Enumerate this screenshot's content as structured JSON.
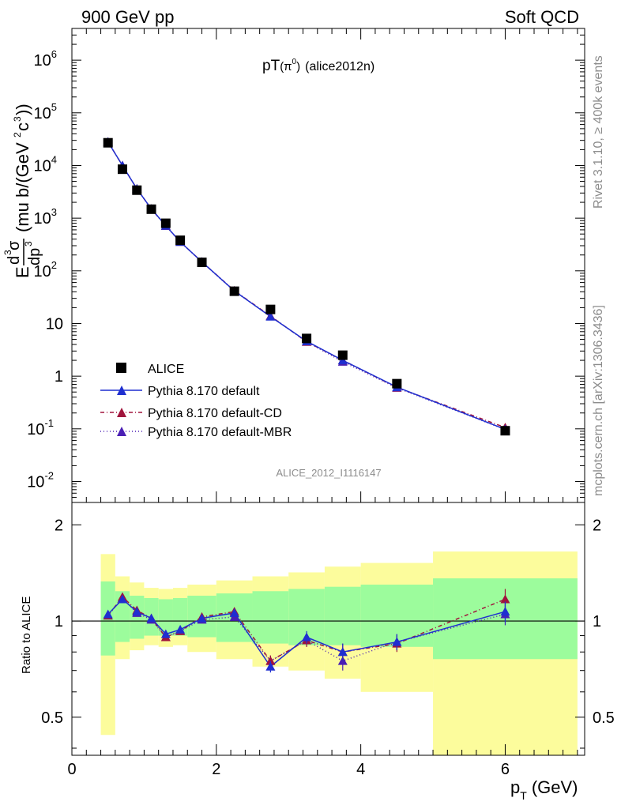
{
  "header": {
    "left": "900 GeV pp",
    "right": "Soft QCD"
  },
  "side_text": {
    "rivet": "Rivet 3.1.10, ≥ 400k events",
    "mcplots": "mcplots.cern.ch [arXiv:1306.3436]"
  },
  "plot_title": {
    "main": "pT",
    "paren": "(π",
    "sup": "0",
    "close": ")",
    "tag": "(alice2012n)"
  },
  "watermark": "ALICE_2012_I1116147",
  "colors": {
    "data": "#000000",
    "default": "#1f2fd0",
    "cd": "#a0143c",
    "mbr": "#4a1fb4",
    "band_inner": "#9cfc9c",
    "band_outer": "#fcfc9c"
  },
  "chart_data": [
    {
      "type": "scatter",
      "title": "",
      "ylabel": "E d³σ/dp³ (mu b/(GeV²c³))",
      "xlabel": "",
      "yscale": "log",
      "xlim": [
        0,
        7.1
      ],
      "ylim": [
        0.004,
        4000000
      ],
      "y_ticks": [
        {
          "value": 0.01,
          "base": "10",
          "exp": "-2"
        },
        {
          "value": 0.1,
          "base": "10",
          "exp": "-1"
        },
        {
          "value": 1,
          "base": "1",
          "exp": ""
        },
        {
          "value": 10,
          "base": "10",
          "exp": ""
        },
        {
          "value": 100,
          "base": "10",
          "exp": "2"
        },
        {
          "value": 1000,
          "base": "10",
          "exp": "3"
        },
        {
          "value": 10000,
          "base": "10",
          "exp": "4"
        },
        {
          "value": 100000,
          "base": "10",
          "exp": "5"
        },
        {
          "value": 1000000,
          "base": "10",
          "exp": "6"
        }
      ],
      "legend_position": "bottom-left",
      "x": [
        0.5,
        0.7,
        0.9,
        1.1,
        1.3,
        1.5,
        1.8,
        2.25,
        2.75,
        3.25,
        3.75,
        4.5,
        6.0
      ],
      "series": [
        {
          "name": "ALICE",
          "values": [
            27000,
            8500,
            3400,
            1480,
            800,
            380,
            145,
            41,
            18.5,
            5.2,
            2.5,
            0.72,
            0.092
          ]
        },
        {
          "name": "Pythia 8.170 default",
          "values": [
            28000,
            10000,
            3600,
            1500,
            720,
            355,
            148,
            41.5,
            13.5,
            4.6,
            2.0,
            0.62,
            0.098
          ]
        },
        {
          "name": "Pythia 8.170 default-CD",
          "values": [
            28000,
            10000,
            3600,
            1500,
            720,
            355,
            148,
            42,
            13.8,
            4.5,
            2.0,
            0.61,
            0.106
          ]
        },
        {
          "name": "Pythia 8.170 default-MBR",
          "values": [
            28000,
            10000,
            3600,
            1490,
            710,
            355,
            147,
            41,
            13.8,
            4.5,
            1.88,
            0.6,
            0.097
          ]
        }
      ]
    },
    {
      "type": "line",
      "title": "",
      "xlabel": "p_T (GeV)",
      "ylabel": "Ratio to ALICE",
      "yscale": "log",
      "xlim": [
        0,
        7.1
      ],
      "ylim": [
        0.38,
        2.35
      ],
      "x_ticks": [
        "0",
        "2",
        "4",
        "6"
      ],
      "y_ticks": [
        "0.5",
        "1",
        "2"
      ],
      "x": [
        0.5,
        0.7,
        0.9,
        1.1,
        1.3,
        1.5,
        1.8,
        2.25,
        2.75,
        3.25,
        3.75,
        4.5,
        6.0
      ],
      "bands": {
        "edges": [
          0.4,
          0.6,
          0.8,
          1.0,
          1.2,
          1.4,
          1.6,
          2.0,
          2.5,
          3.0,
          3.5,
          4.0,
          5.0,
          7.0
        ],
        "outer_lo": [
          0.44,
          0.76,
          0.81,
          0.84,
          0.83,
          0.84,
          0.8,
          0.76,
          0.72,
          0.7,
          0.66,
          0.6,
          0.38
        ],
        "outer_hi": [
          1.62,
          1.38,
          1.32,
          1.27,
          1.26,
          1.27,
          1.3,
          1.34,
          1.38,
          1.42,
          1.48,
          1.52,
          1.65
        ],
        "inner_lo": [
          0.78,
          0.86,
          0.88,
          0.9,
          0.9,
          0.9,
          0.89,
          0.86,
          0.85,
          0.84,
          0.84,
          0.83,
          0.76
        ],
        "inner_hi": [
          1.33,
          1.24,
          1.2,
          1.18,
          1.17,
          1.18,
          1.2,
          1.22,
          1.24,
          1.26,
          1.28,
          1.3,
          1.36
        ]
      },
      "series": [
        {
          "name": "Pythia 8.170 default",
          "values": [
            1.05,
            1.17,
            1.07,
            1.02,
            0.91,
            0.94,
            1.02,
            1.06,
            0.72,
            0.89,
            0.8,
            0.86,
            1.07
          ],
          "err": [
            0.02,
            0.02,
            0.02,
            0.02,
            0.02,
            0.02,
            0.02,
            0.02,
            0.03,
            0.04,
            0.05,
            0.05,
            0.08
          ]
        },
        {
          "name": "Pythia 8.170 default-CD",
          "values": [
            1.04,
            1.19,
            1.08,
            1.02,
            0.89,
            0.93,
            1.03,
            1.07,
            0.75,
            0.87,
            0.8,
            0.85,
            1.17
          ],
          "err": [
            0.02,
            0.02,
            0.02,
            0.02,
            0.02,
            0.02,
            0.02,
            0.02,
            0.03,
            0.04,
            0.05,
            0.05,
            0.09
          ]
        },
        {
          "name": "Pythia 8.170 default-MBR",
          "values": [
            1.04,
            1.18,
            1.06,
            1.01,
            0.89,
            0.93,
            1.01,
            1.03,
            0.75,
            0.87,
            0.75,
            0.86,
            1.05
          ],
          "err": [
            0.02,
            0.02,
            0.02,
            0.02,
            0.02,
            0.02,
            0.02,
            0.02,
            0.03,
            0.04,
            0.05,
            0.05,
            0.08
          ]
        }
      ]
    }
  ]
}
